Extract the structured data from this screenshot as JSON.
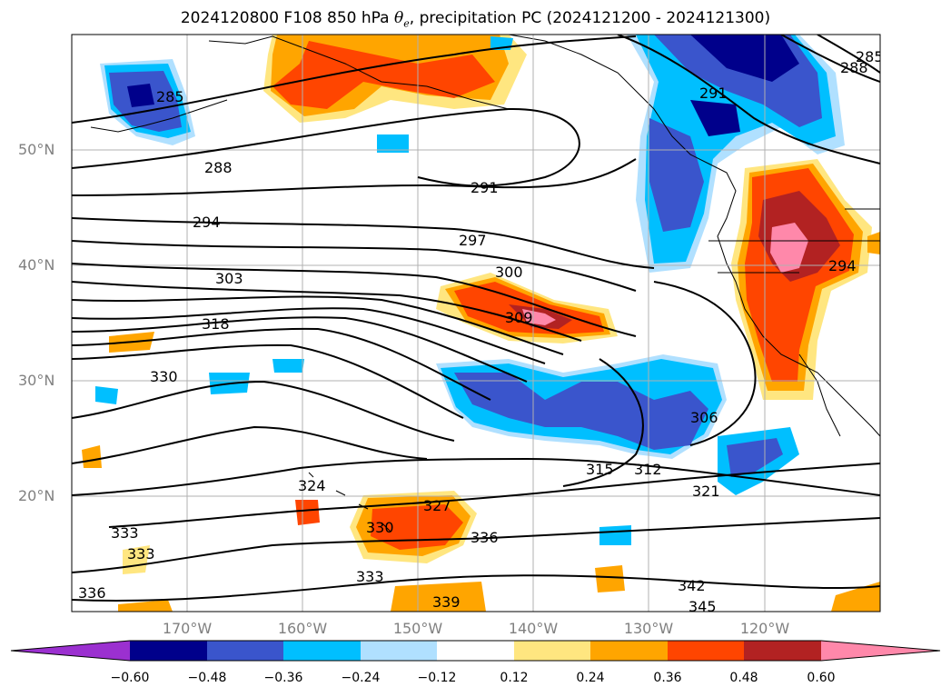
{
  "title_prefix": "2024120800 F108 850 hPa ",
  "title_symbol": "θ",
  "title_subscript": "e",
  "title_suffix": ", precipitation PC (2024121200 - 2024121300)",
  "map": {
    "extent_lon": [
      -180,
      -110
    ],
    "extent_lat": [
      10,
      60
    ],
    "lat_ticks": [
      {
        "value": 50,
        "label": "50°N"
      },
      {
        "value": 40,
        "label": "40°N"
      },
      {
        "value": 30,
        "label": "30°N"
      },
      {
        "value": 20,
        "label": "20°N"
      }
    ],
    "lon_ticks": [
      {
        "value": -170,
        "label": "170°W"
      },
      {
        "value": -160,
        "label": "160°W"
      },
      {
        "value": -150,
        "label": "150°W"
      },
      {
        "value": -140,
        "label": "140°W"
      },
      {
        "value": -130,
        "label": "130°W"
      },
      {
        "value": -120,
        "label": "120°W"
      }
    ],
    "grid": true,
    "contour_labels": [
      "285",
      "288",
      "291",
      "294",
      "297",
      "300",
      "303",
      "309",
      "318",
      "330",
      "306",
      "312",
      "315",
      "321",
      "324",
      "327",
      "330",
      "333",
      "333",
      "333",
      "336",
      "336",
      "339",
      "342",
      "345",
      "291",
      "294",
      "288",
      "285"
    ]
  },
  "colorbar": {
    "levels": [
      "−0.60",
      "−0.48",
      "−0.36",
      "−0.24",
      "−0.12",
      "0.12",
      "0.24",
      "0.36",
      "0.48",
      "0.60"
    ],
    "colors": [
      "#9b30d0",
      "#00008b",
      "#3a55cc",
      "#00bfff",
      "#b0e0ff",
      "#ffffff",
      "#ffe680",
      "#ffa500",
      "#ff4500",
      "#b22222",
      "#ff88aa"
    ],
    "extend": "both"
  }
}
